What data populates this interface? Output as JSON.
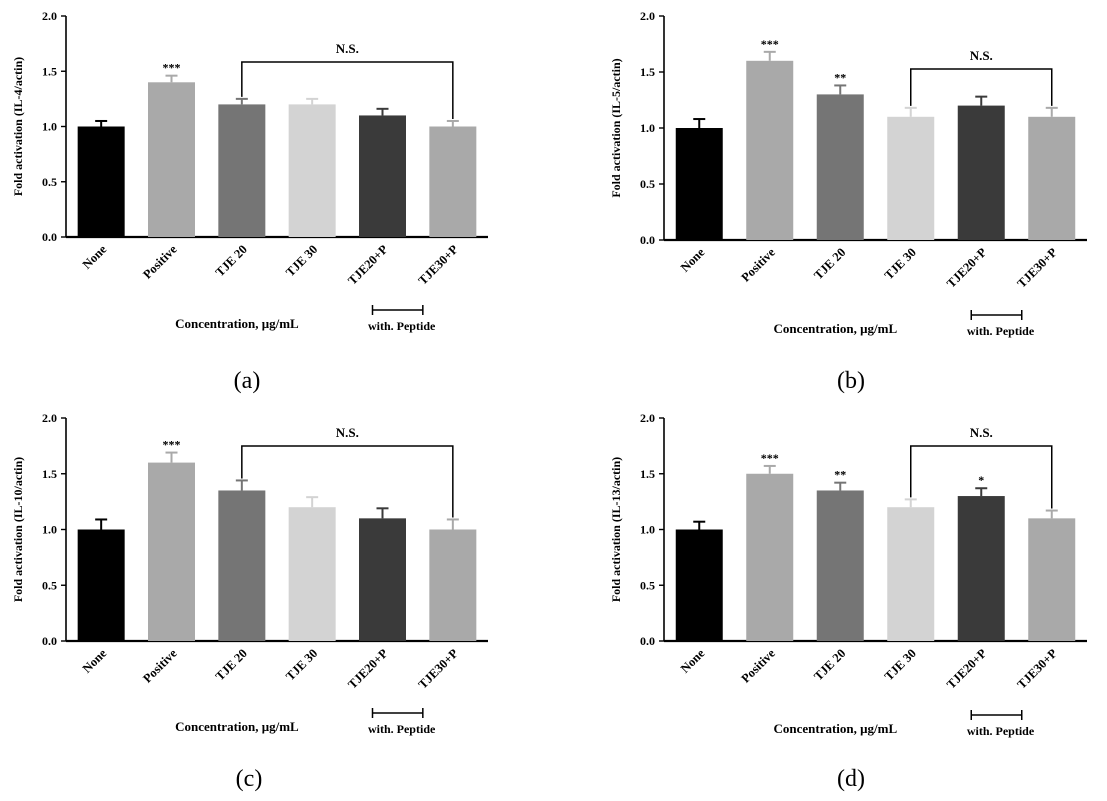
{
  "chart_data": [
    {
      "type": "bar",
      "panel_label": "(a)",
      "ylabel": "Fold activation (IL-4/actin)",
      "xlabel": "Concentration, μg/mL",
      "ylim": [
        0,
        2.0
      ],
      "yticks": [
        "0.0",
        "0.5",
        "1.0",
        "1.5",
        "2.0"
      ],
      "categories": [
        "None",
        "Positive",
        "TJE 20",
        "TJE 30",
        "TJE20+P",
        "TJE30+P"
      ],
      "values": [
        1.0,
        1.4,
        1.2,
        1.2,
        1.1,
        1.0
      ],
      "errors": [
        0.05,
        0.06,
        0.05,
        0.05,
        0.06,
        0.05
      ],
      "colors": [
        "#000000",
        "#a9a9a9",
        "#757575",
        "#d3d3d3",
        "#3a3a3a",
        "#a9a9a9"
      ],
      "significance": [
        "",
        "***",
        "",
        "",
        "",
        ""
      ],
      "bracket": {
        "from": 2,
        "to": 5,
        "label": "N.S."
      },
      "group_label": {
        "from": 4,
        "to": 5,
        "label": "with. Peptide"
      }
    },
    {
      "type": "bar",
      "panel_label": "(b)",
      "ylabel": "Fold activation (IL-5/actin)",
      "xlabel": "Concentration, μg/mL",
      "ylim": [
        0,
        2.0
      ],
      "yticks": [
        "0.0",
        "0.5",
        "1.0",
        "1.5",
        "2.0"
      ],
      "categories": [
        "None",
        "Positive",
        "TJE 20",
        "TJE 30",
        "TJE20+P",
        "TJE30+P"
      ],
      "values": [
        1.0,
        1.6,
        1.3,
        1.1,
        1.2,
        1.1
      ],
      "errors": [
        0.08,
        0.08,
        0.08,
        0.08,
        0.08,
        0.08
      ],
      "colors": [
        "#000000",
        "#a9a9a9",
        "#757575",
        "#d3d3d3",
        "#3a3a3a",
        "#a9a9a9"
      ],
      "significance": [
        "",
        "***",
        "**",
        "",
        "",
        ""
      ],
      "bracket": {
        "from": 3,
        "to": 5,
        "label": "N.S."
      },
      "group_label": {
        "from": 4,
        "to": 5,
        "label": "with. Peptide"
      }
    },
    {
      "type": "bar",
      "panel_label": "(c)",
      "ylabel": "Fold activation (IL-10/actin)",
      "xlabel": "Concentration, μg/mL",
      "ylim": [
        0,
        2.0
      ],
      "yticks": [
        "0.0",
        "0.5",
        "1.0",
        "1.5",
        "2.0"
      ],
      "categories": [
        "None",
        "Positive",
        "TJE 20",
        "TJE 30",
        "TJE20+P",
        "TJE30+P"
      ],
      "values": [
        1.0,
        1.6,
        1.35,
        1.2,
        1.1,
        1.0
      ],
      "errors": [
        0.09,
        0.09,
        0.09,
        0.09,
        0.09,
        0.09
      ],
      "colors": [
        "#000000",
        "#a9a9a9",
        "#757575",
        "#d3d3d3",
        "#3a3a3a",
        "#a9a9a9"
      ],
      "significance": [
        "",
        "***",
        "",
        "",
        "",
        ""
      ],
      "bracket": {
        "from": 2,
        "to": 5,
        "label": "N.S."
      },
      "group_label": {
        "from": 4,
        "to": 5,
        "label": "with. Peptide"
      }
    },
    {
      "type": "bar",
      "panel_label": "(d)",
      "ylabel": "Fold activation (IL-13/actin)",
      "xlabel": "Concentration, μg/mL",
      "ylim": [
        0,
        2.0
      ],
      "yticks": [
        "0.0",
        "0.5",
        "1.0",
        "1.5",
        "2.0"
      ],
      "categories": [
        "None",
        "Positive",
        "TJE 20",
        "TJE 30",
        "TJE20+P",
        "TJE30+P"
      ],
      "values": [
        1.0,
        1.5,
        1.35,
        1.2,
        1.3,
        1.1
      ],
      "errors": [
        0.07,
        0.07,
        0.07,
        0.07,
        0.07,
        0.07
      ],
      "colors": [
        "#000000",
        "#a9a9a9",
        "#757575",
        "#d3d3d3",
        "#3a3a3a",
        "#a9a9a9"
      ],
      "significance": [
        "",
        "***",
        "**",
        "",
        "*",
        ""
      ],
      "bracket": {
        "from": 3,
        "to": 5,
        "label": "N.S."
      },
      "group_label": {
        "from": 4,
        "to": 5,
        "label": "with. Peptide"
      }
    }
  ]
}
